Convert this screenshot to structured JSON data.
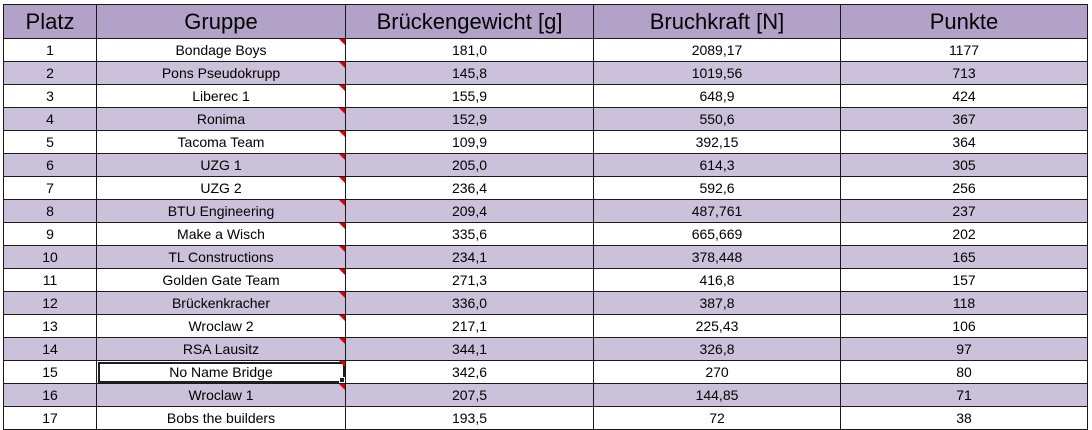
{
  "colors": {
    "header_bg": "#b3a2c7",
    "row_alt_bg": "#ccc1da",
    "row_bg": "#ffffff",
    "comment_indicator": "#e00000"
  },
  "table": {
    "headers": [
      "Platz",
      "Gruppe",
      "Brückengewicht [g]",
      "Bruchkraft [N]",
      "Punkte"
    ],
    "rows": [
      {
        "platz": "1",
        "gruppe": "Bondage Boys",
        "gewicht": "181,0",
        "bruchkraft": "2089,17",
        "punkte": "1177",
        "comment": true
      },
      {
        "platz": "2",
        "gruppe": "Pons Pseudokrupp",
        "gewicht": "145,8",
        "bruchkraft": "1019,56",
        "punkte": "713",
        "comment": true
      },
      {
        "platz": "3",
        "gruppe": "Liberec 1",
        "gewicht": "155,9",
        "bruchkraft": "648,9",
        "punkte": "424",
        "comment": true
      },
      {
        "platz": "4",
        "gruppe": "Ronima",
        "gewicht": "152,9",
        "bruchkraft": "550,6",
        "punkte": "367",
        "comment": true
      },
      {
        "platz": "5",
        "gruppe": "Tacoma Team",
        "gewicht": "109,9",
        "bruchkraft": "392,15",
        "punkte": "364",
        "comment": true
      },
      {
        "platz": "6",
        "gruppe": "UZG 1",
        "gewicht": "205,0",
        "bruchkraft": "614,3",
        "punkte": "305",
        "comment": true
      },
      {
        "platz": "7",
        "gruppe": "UZG 2",
        "gewicht": "236,4",
        "bruchkraft": "592,6",
        "punkte": "256",
        "comment": true
      },
      {
        "platz": "8",
        "gruppe": "BTU Engineering",
        "gewicht": "209,4",
        "bruchkraft": "487,761",
        "punkte": "237",
        "comment": true
      },
      {
        "platz": "9",
        "gruppe": "Make a Wisch",
        "gewicht": "335,6",
        "bruchkraft": "665,669",
        "punkte": "202",
        "comment": true
      },
      {
        "platz": "10",
        "gruppe": "TL Constructions",
        "gewicht": "234,1",
        "bruchkraft": "378,448",
        "punkte": "165",
        "comment": true
      },
      {
        "platz": "11",
        "gruppe": "Golden Gate Team",
        "gewicht": "271,3",
        "bruchkraft": "416,8",
        "punkte": "157",
        "comment": true
      },
      {
        "platz": "12",
        "gruppe": "Brückenkracher",
        "gewicht": "336,0",
        "bruchkraft": "387,8",
        "punkte": "118",
        "comment": true
      },
      {
        "platz": "13",
        "gruppe": "Wroclaw 2",
        "gewicht": "217,1",
        "bruchkraft": "225,43",
        "punkte": "106",
        "comment": true
      },
      {
        "platz": "14",
        "gruppe": "RSA Lausitz",
        "gewicht": "344,1",
        "bruchkraft": "326,8",
        "punkte": "97",
        "comment": true
      },
      {
        "platz": "15",
        "gruppe": "No Name Bridge",
        "gewicht": "342,6",
        "bruchkraft": "270",
        "punkte": "80",
        "comment": true,
        "selected": true
      },
      {
        "platz": "16",
        "gruppe": "Wroclaw 1",
        "gewicht": "207,5",
        "bruchkraft": "144,85",
        "punkte": "71",
        "comment": true
      },
      {
        "platz": "17",
        "gruppe": "Bobs the builders",
        "gewicht": "193,5",
        "bruchkraft": "72",
        "punkte": "38",
        "comment": false
      }
    ]
  }
}
